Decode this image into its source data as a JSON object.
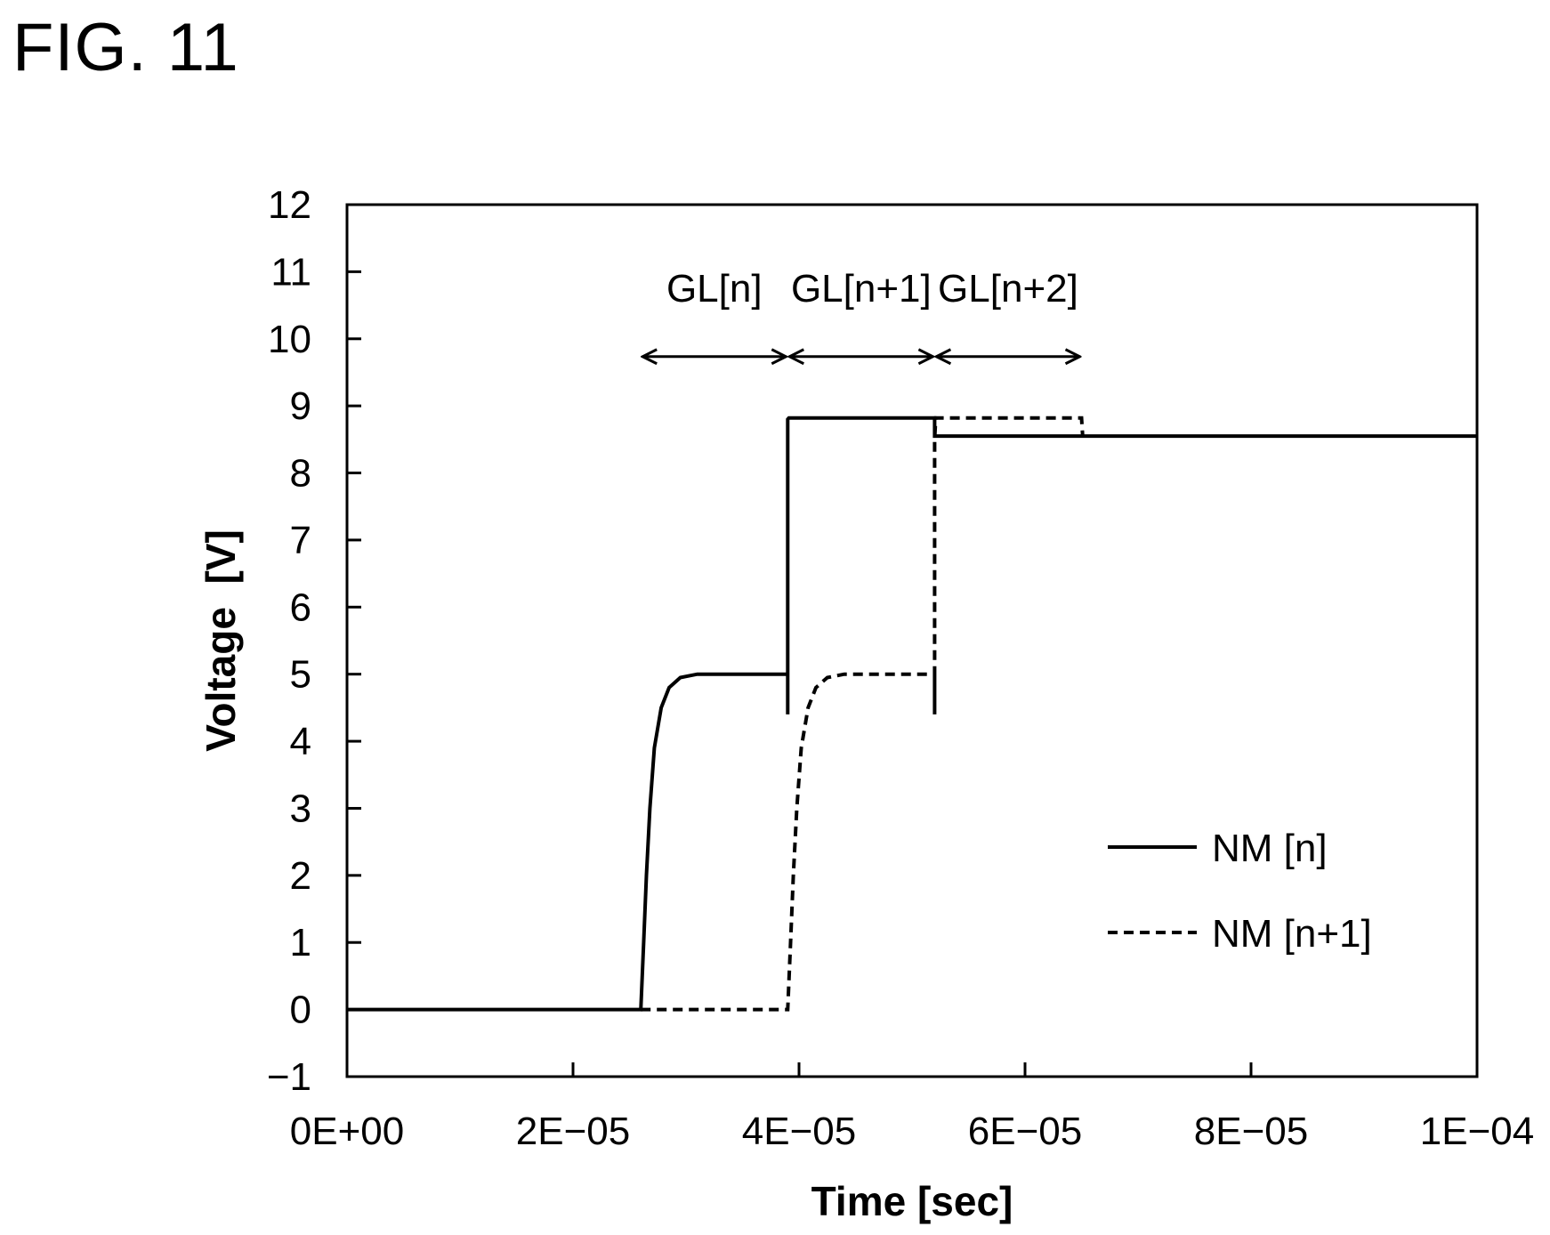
{
  "figure_title": "FIG. 11",
  "chart_data": {
    "type": "line",
    "xlabel": "Time [sec]",
    "ylabel": "Voltage  [V]",
    "xlim": [
      0,
      0.0001
    ],
    "ylim": [
      -1,
      12
    ],
    "x_ticks": [
      0,
      2e-05,
      4e-05,
      6e-05,
      8e-05,
      0.0001
    ],
    "x_tick_labels": [
      "0E+00",
      "2E−05",
      "4E−05",
      "6E−05",
      "8E−05",
      "1E−04"
    ],
    "y_ticks": [
      -1,
      0,
      1,
      2,
      3,
      4,
      5,
      6,
      7,
      8,
      9,
      10,
      11,
      12
    ],
    "y_tick_labels": [
      "−1",
      "0",
      "1",
      "2",
      "3",
      "4",
      "5",
      "6",
      "7",
      "8",
      "9",
      "10",
      "11",
      "12"
    ],
    "grid": false,
    "legend_position": "lower-right",
    "series": [
      {
        "name": "NM [n]",
        "style": "solid",
        "color": "#000000",
        "points": [
          [
            0,
            0
          ],
          [
            2.6e-05,
            0
          ],
          [
            2.625e-05,
            1.0
          ],
          [
            2.65e-05,
            2.0
          ],
          [
            2.68e-05,
            3.0
          ],
          [
            2.72e-05,
            3.9
          ],
          [
            2.78e-05,
            4.5
          ],
          [
            2.85e-05,
            4.8
          ],
          [
            2.95e-05,
            4.95
          ],
          [
            3.1e-05,
            5.0
          ],
          [
            3.9e-05,
            5.0
          ],
          [
            3.9e-05,
            4.4
          ],
          [
            3.9e-05,
            8.8
          ],
          [
            3.91e-05,
            8.82
          ],
          [
            5.2e-05,
            8.82
          ],
          [
            5.2e-05,
            8.55
          ],
          [
            0.0001,
            8.55
          ]
        ]
      },
      {
        "name": "NM [n+1]",
        "style": "dashed",
        "color": "#000000",
        "points": [
          [
            2.6e-05,
            0
          ],
          [
            3.9e-05,
            0
          ],
          [
            3.925e-05,
            1.0
          ],
          [
            3.95e-05,
            2.0
          ],
          [
            3.98e-05,
            3.0
          ],
          [
            4.02e-05,
            3.9
          ],
          [
            4.08e-05,
            4.5
          ],
          [
            4.15e-05,
            4.8
          ],
          [
            4.25e-05,
            4.95
          ],
          [
            4.4e-05,
            5.0
          ],
          [
            5.2e-05,
            5.0
          ],
          [
            5.2e-05,
            4.4
          ],
          [
            5.2e-05,
            8.5
          ],
          [
            5.21e-05,
            8.82
          ],
          [
            6.5e-05,
            8.82
          ],
          [
            6.51e-05,
            8.55
          ]
        ]
      }
    ],
    "annotations": [
      {
        "label": "GL[n]",
        "x_start": 2.6e-05,
        "x_end": 3.9e-05,
        "y": 10
      },
      {
        "label": "GL[n+1]",
        "x_start": 3.9e-05,
        "x_end": 5.2e-05,
        "y": 10
      },
      {
        "label": "GL[n+2]",
        "x_start": 5.2e-05,
        "x_end": 6.5e-05,
        "y": 10
      }
    ]
  }
}
